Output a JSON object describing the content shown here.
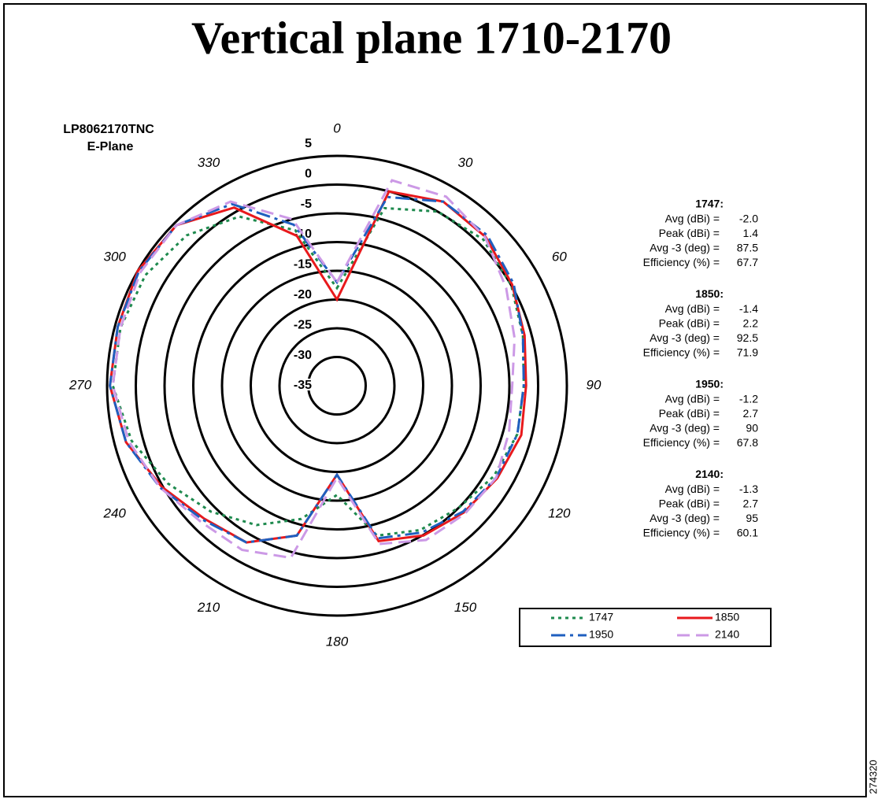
{
  "chart_data": {
    "type": "polar",
    "title": "Vertical plane 1710-2170",
    "corner_label": [
      "LP8062170TNC",
      "E-Plane"
    ],
    "figure_number": "274320",
    "x": [
      0,
      15,
      30,
      45,
      60,
      75,
      90,
      105,
      120,
      135,
      150,
      165,
      180,
      195,
      210,
      225,
      240,
      255,
      270,
      285,
      300,
      315,
      330,
      345
    ],
    "xticks": [
      0,
      30,
      60,
      90,
      120,
      150,
      180,
      210,
      240,
      270,
      300,
      330
    ],
    "rlim": [
      -35,
      5
    ],
    "rticks": [
      -35,
      -30,
      -25,
      -20,
      -15,
      -10,
      -5,
      0,
      5
    ],
    "series": [
      {
        "name": "1747",
        "color": "#1e8a4e",
        "dash": "dotted",
        "values": [
          -18,
          -3,
          0,
          1,
          0,
          -1.5,
          -2.5,
          -2.5,
          -3.5,
          -5,
          -6,
          -8,
          -16,
          -11,
          -7,
          -4,
          -1,
          2,
          4,
          4,
          3.5,
          2,
          -1,
          -7
        ]
      },
      {
        "name": "1850",
        "color": "#e8191c",
        "dash": "solid",
        "values": [
          -20,
          0,
          2,
          1.6,
          0.2,
          -1.2,
          -2.1,
          -1.8,
          -2.8,
          -3.8,
          -4.9,
          -7,
          -19.5,
          -8,
          -3.5,
          -2.3,
          0.2,
          3,
          4.5,
          4.5,
          5,
          4.5,
          0.8,
          -8
        ]
      },
      {
        "name": "1950",
        "color": "#1f5fbf",
        "dash": "dashdot",
        "values": [
          -17,
          -1,
          2,
          2,
          0.5,
          -1.5,
          -2.5,
          -2.5,
          -3,
          -4,
          -5.5,
          -7.5,
          -19.5,
          -8,
          -3.5,
          -2,
          0.5,
          3,
          4.5,
          4.5,
          4.8,
          4.5,
          1.5,
          -6
        ]
      },
      {
        "name": "2140",
        "color": "#cc99e6",
        "dash": "dashed",
        "values": [
          -17,
          2,
          3,
          1.5,
          -1,
          -3,
          -4.5,
          -4,
          -3,
          -3.5,
          -4,
          -6.5,
          -19,
          -4,
          -2,
          -1.5,
          0.5,
          2.5,
          4,
          4,
          4.5,
          4.5,
          2,
          -5
        ]
      }
    ],
    "stats": [
      {
        "name": "1747:",
        "rows": [
          {
            "label": "Avg (dBi) =",
            "value": "-2.0"
          },
          {
            "label": "Peak (dBi) =",
            "value": "1.4"
          },
          {
            "label": "Avg -3 (deg) =",
            "value": "87.5"
          },
          {
            "label": "Efficiency (%) =",
            "value": "67.7"
          }
        ]
      },
      {
        "name": "1850:",
        "rows": [
          {
            "label": "Avg (dBi) =",
            "value": "-1.4"
          },
          {
            "label": "Peak (dBi) =",
            "value": "2.2"
          },
          {
            "label": "Avg -3 (deg) =",
            "value": "92.5"
          },
          {
            "label": "Efficiency (%) =",
            "value": "71.9"
          }
        ]
      },
      {
        "name": "1950:",
        "rows": [
          {
            "label": "Avg (dBi) =",
            "value": "-1.2"
          },
          {
            "label": "Peak (dBi) =",
            "value": "2.7"
          },
          {
            "label": "Avg -3 (deg) =",
            "value": "90"
          },
          {
            "label": "Efficiency (%) =",
            "value": "67.8"
          }
        ]
      },
      {
        "name": "2140:",
        "rows": [
          {
            "label": "Avg (dBi) =",
            "value": "-1.3"
          },
          {
            "label": "Peak (dBi) =",
            "value": "2.7"
          },
          {
            "label": "Avg -3 (deg) =",
            "value": "95"
          },
          {
            "label": "Efficiency (%) =",
            "value": "60.1"
          }
        ]
      }
    ]
  }
}
